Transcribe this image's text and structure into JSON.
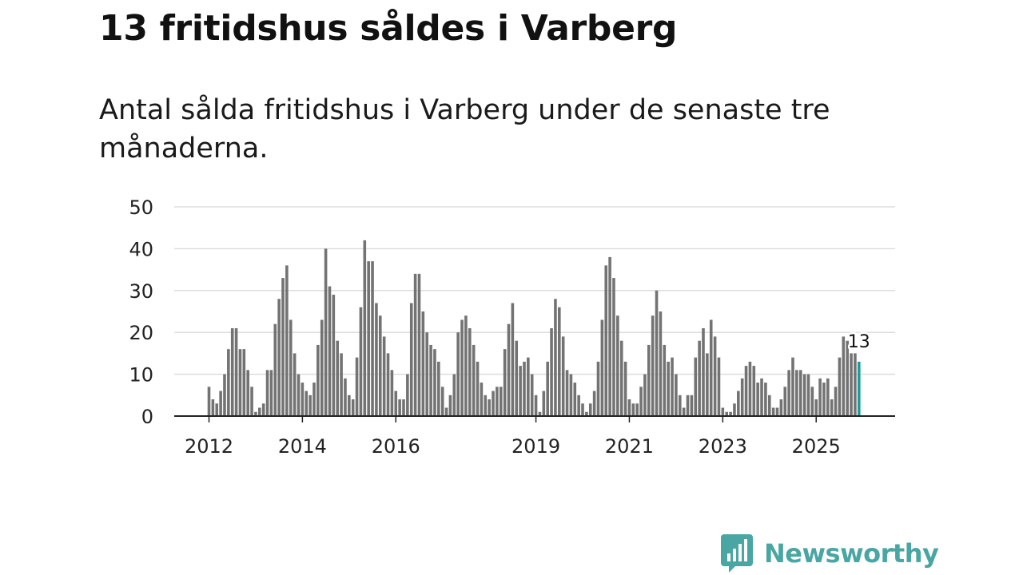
{
  "header": {
    "title": "13 fritidshus såldes i Varberg",
    "subtitle": "Antal sålda fritidshus i Varberg under de senaste tre månaderna."
  },
  "chart_data": {
    "type": "bar",
    "title": "13 fritidshus såldes i Varberg",
    "subtitle": "Antal sålda fritidshus i Varberg under de senaste tre månaderna.",
    "xlabel": "",
    "ylabel": "",
    "ylim": [
      0,
      50
    ],
    "yticks": [
      0,
      10,
      20,
      30,
      40,
      50
    ],
    "grid": true,
    "start_period": "2012-01",
    "frequency": "monthly",
    "xtick_labels": [
      {
        "label": "2012",
        "period": "2012-01"
      },
      {
        "label": "2014",
        "period": "2014-01"
      },
      {
        "label": "2016",
        "period": "2016-01"
      },
      {
        "label": "2019",
        "period": "2019-01"
      },
      {
        "label": "2021",
        "period": "2021-01"
      },
      {
        "label": "2023",
        "period": "2023-01"
      },
      {
        "label": "2025",
        "period": "2025-01"
      }
    ],
    "values": [
      7,
      4,
      3,
      6,
      10,
      16,
      21,
      21,
      16,
      16,
      11,
      7,
      1,
      2,
      3,
      11,
      11,
      22,
      28,
      33,
      36,
      23,
      15,
      10,
      8,
      6,
      5,
      8,
      17,
      23,
      40,
      31,
      29,
      18,
      15,
      9,
      5,
      4,
      14,
      26,
      42,
      37,
      37,
      27,
      24,
      19,
      15,
      11,
      6,
      4,
      4,
      10,
      27,
      34,
      34,
      25,
      20,
      17,
      16,
      13,
      7,
      2,
      5,
      10,
      20,
      23,
      24,
      21,
      17,
      13,
      8,
      5,
      4,
      6,
      7,
      7,
      16,
      22,
      27,
      18,
      12,
      13,
      14,
      10,
      5,
      1,
      6,
      13,
      21,
      28,
      26,
      19,
      11,
      10,
      8,
      5,
      3,
      1,
      3,
      6,
      13,
      23,
      36,
      38,
      33,
      24,
      18,
      13,
      4,
      3,
      3,
      7,
      10,
      17,
      24,
      30,
      25,
      17,
      13,
      14,
      10,
      5,
      2,
      5,
      5,
      14,
      18,
      21,
      15,
      23,
      19,
      14,
      2,
      1,
      1,
      3,
      6,
      9,
      12,
      13,
      12,
      8,
      9,
      8,
      5,
      2,
      2,
      4,
      7,
      11,
      14,
      11,
      11,
      10,
      10,
      7,
      4,
      9,
      8,
      9,
      4,
      7,
      14,
      19,
      18,
      15,
      15,
      13
    ],
    "highlight_index": 167,
    "highlight_label": "13",
    "colors": {
      "bar": "#737373",
      "highlight": "#1a9e9a",
      "grid": "#dddddd",
      "axis": "#222222"
    }
  },
  "logo": {
    "text": "Newsworthy",
    "icon": "newsworthy-logo-icon",
    "color": "#4aa6a2"
  }
}
